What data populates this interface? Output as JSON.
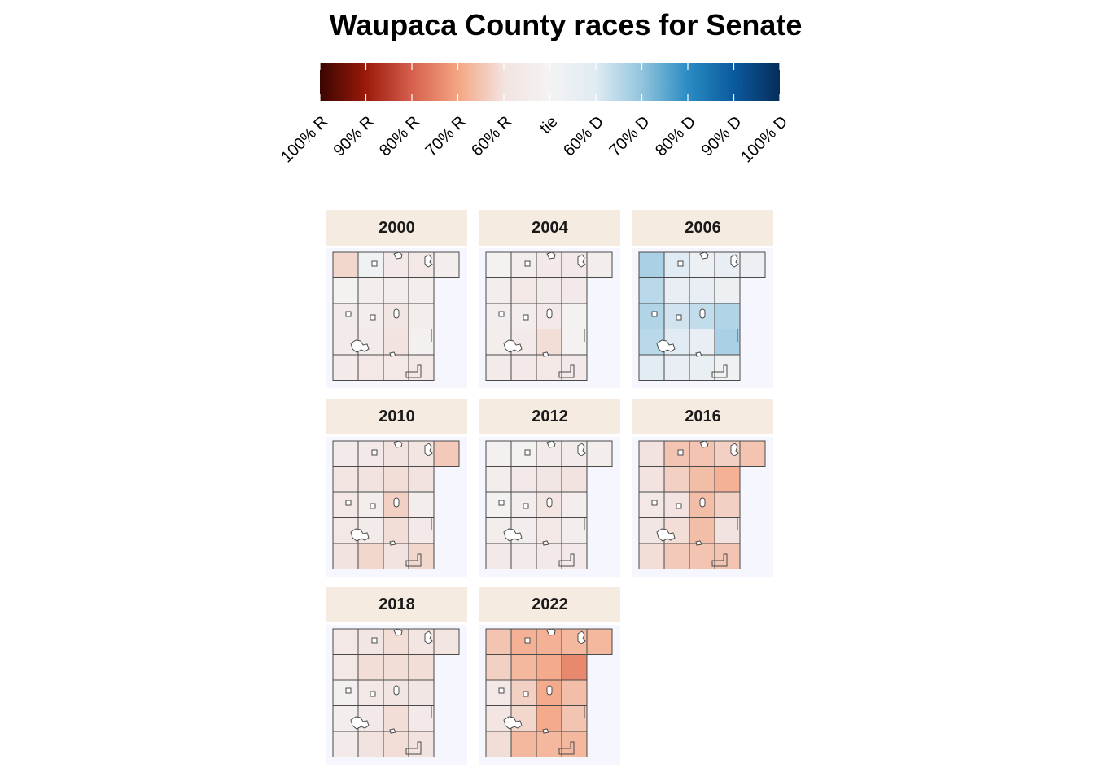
{
  "title": "Waupaca County races for Senate",
  "legend": {
    "labels": [
      "100% R",
      "90% R",
      "80% R",
      "70% R",
      "60% R",
      "tie",
      "60% D",
      "70% D",
      "80% D",
      "90% D",
      "100% D"
    ],
    "colors": [
      "#3a0500",
      "#9b1a0a",
      "#d6604d",
      "#f4a582",
      "#f2e3e0",
      "#f4f3f3",
      "#e0ebf3",
      "#92c5de",
      "#2a8cc2",
      "#0b5a9e",
      "#062d5b"
    ]
  },
  "panels": [
    {
      "year": "2000",
      "cells": [
        [
          0.62,
          0.48,
          0.56,
          0.57,
          0.54
        ],
        [
          0.51,
          0.53,
          0.54,
          0.54,
          null
        ],
        [
          0.55,
          0.53,
          0.58,
          0.54,
          null
        ],
        [
          0.55,
          0.55,
          0.6,
          0.52,
          null
        ],
        [
          0.55,
          0.57,
          0.57,
          0.57,
          null
        ]
      ]
    },
    {
      "year": "2004",
      "cells": [
        [
          0.51,
          0.53,
          0.56,
          0.56,
          0.54
        ],
        [
          0.53,
          0.57,
          0.55,
          0.56,
          null
        ],
        [
          0.53,
          0.54,
          0.56,
          0.51,
          null
        ],
        [
          0.54,
          0.56,
          0.61,
          0.51,
          null
        ],
        [
          0.55,
          0.56,
          0.57,
          0.56,
          null
        ]
      ]
    },
    {
      "year": "2006",
      "cells": [
        [
          0.67,
          0.6,
          0.54,
          0.56,
          0.54
        ],
        [
          0.65,
          0.56,
          0.56,
          0.54,
          null
        ],
        [
          0.66,
          0.62,
          0.64,
          0.66,
          null
        ],
        [
          0.65,
          0.6,
          0.56,
          0.67,
          null
        ],
        [
          0.59,
          0.56,
          0.55,
          0.52,
          null
        ]
      ]
    },
    {
      "year": "2010",
      "cells": [
        [
          0.55,
          0.56,
          0.6,
          0.59,
          0.64
        ],
        [
          0.59,
          0.6,
          0.61,
          0.6,
          null
        ],
        [
          0.57,
          0.54,
          0.63,
          0.54,
          null
        ],
        [
          0.57,
          0.55,
          0.61,
          0.56,
          null
        ],
        [
          0.6,
          0.62,
          0.6,
          0.62,
          null
        ]
      ]
    },
    {
      "year": "2012",
      "cells": [
        [
          0.52,
          0.51,
          0.55,
          0.55,
          0.54
        ],
        [
          0.54,
          0.56,
          0.58,
          0.6,
          null
        ],
        [
          0.51,
          0.53,
          0.59,
          0.53,
          null
        ],
        [
          0.54,
          0.53,
          0.57,
          0.53,
          null
        ],
        [
          0.56,
          0.55,
          0.56,
          0.56,
          null
        ]
      ]
    },
    {
      "year": "2016",
      "cells": [
        [
          0.6,
          0.65,
          0.65,
          0.63,
          0.65
        ],
        [
          0.6,
          0.63,
          0.66,
          0.68,
          null
        ],
        [
          0.57,
          0.6,
          0.66,
          0.63,
          null
        ],
        [
          0.58,
          0.61,
          0.66,
          0.6,
          null
        ],
        [
          0.61,
          0.64,
          0.65,
          0.65,
          null
        ]
      ]
    },
    {
      "year": "2018",
      "cells": [
        [
          0.57,
          0.58,
          0.61,
          0.59,
          0.59
        ],
        [
          0.57,
          0.61,
          0.61,
          0.61,
          null
        ],
        [
          0.52,
          0.57,
          0.59,
          0.58,
          null
        ],
        [
          0.53,
          0.56,
          0.61,
          0.56,
          null
        ],
        [
          0.55,
          0.6,
          0.61,
          0.6,
          null
        ]
      ]
    },
    {
      "year": "2022",
      "cells": [
        [
          0.65,
          0.68,
          0.68,
          0.67,
          0.67
        ],
        [
          0.63,
          0.67,
          0.69,
          0.74,
          null
        ],
        [
          0.57,
          0.63,
          0.69,
          0.66,
          null
        ],
        [
          0.59,
          0.62,
          0.69,
          0.65,
          null
        ],
        [
          0.61,
          0.67,
          0.67,
          0.67,
          null
        ]
      ]
    }
  ]
}
